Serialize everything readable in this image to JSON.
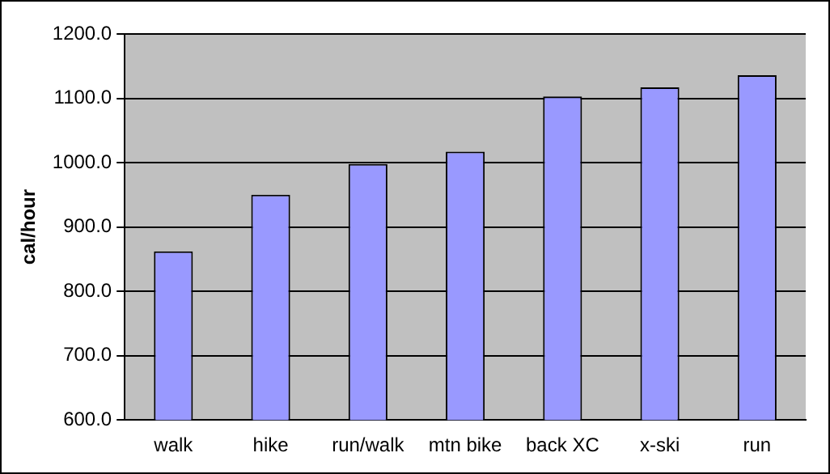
{
  "chart_data": {
    "type": "bar",
    "ylabel": "cal/hour",
    "categories": [
      "walk",
      "hike",
      "run/walk",
      "mtn bike",
      "back XC",
      "x-ski",
      "run"
    ],
    "values": [
      862,
      950,
      998,
      1017,
      1103,
      1117,
      1136
    ],
    "color": "#9999ff",
    "ylim": [
      600,
      1200
    ],
    "yticks": [
      {
        "value": 600,
        "label": "600.0"
      },
      {
        "value": 700,
        "label": "700.0"
      },
      {
        "value": 800,
        "label": "800.0"
      },
      {
        "value": 900,
        "label": "900.0"
      },
      {
        "value": 1000,
        "label": "1000.0"
      },
      {
        "value": 1100,
        "label": "1100.0"
      },
      {
        "value": 1200,
        "label": "1200.0"
      }
    ],
    "grid": "y"
  }
}
